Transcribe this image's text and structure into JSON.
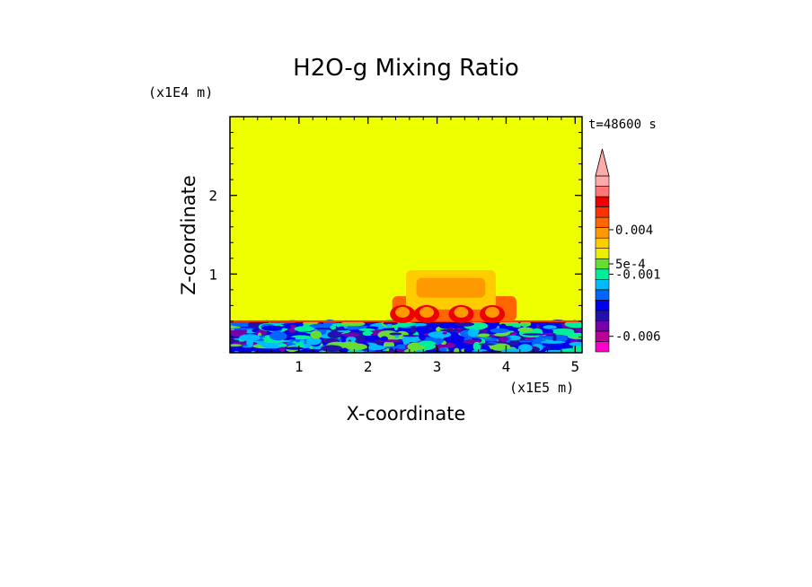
{
  "chart_data": {
    "type": "heatmap",
    "title": "H2O-g Mixing Ratio",
    "xlabel": "X-coordinate",
    "ylabel": "Z-coordinate",
    "x_scale_label": "(x1E5 m)",
    "y_scale_label": "(x1E4 m)",
    "time_label": "t=48600 s",
    "xlim": [
      0,
      5.1
    ],
    "ylim": [
      0,
      3
    ],
    "x_ticks": [
      {
        "value": 1,
        "label": "1"
      },
      {
        "value": 2,
        "label": "2"
      },
      {
        "value": 3,
        "label": "3"
      },
      {
        "value": 4,
        "label": "4"
      },
      {
        "value": 5,
        "label": "5"
      }
    ],
    "y_ticks": [
      {
        "value": 1,
        "label": "1"
      },
      {
        "value": 2,
        "label": "2"
      }
    ],
    "colorbar": {
      "levels": [
        "#ff00cc",
        "#bb0099",
        "#7700aa",
        "#2211aa",
        "#0000ee",
        "#0066ff",
        "#00bbff",
        "#00ee99",
        "#66dd33",
        "#eeee00",
        "#ffcc00",
        "#ff9900",
        "#ff6600",
        "#ff3300",
        "#ee0000",
        "#ff7777",
        "#ffaaaa"
      ],
      "labels": [
        {
          "level": 1.5,
          "text": "-0.006"
        },
        {
          "level": 7.5,
          "text": "-0.001"
        },
        {
          "level": 8.5,
          "text": "5e-4"
        },
        {
          "level": 11.8,
          "text": "0.004"
        }
      ]
    },
    "background_value_color": "#eeff00",
    "boundary_layer_top": 0.4,
    "boundary_layer_colors": [
      "#0000ee",
      "#2211aa",
      "#0066ff",
      "#00bbff",
      "#00ee99",
      "#66dd33",
      "#7700aa"
    ],
    "plume_regions": [
      {
        "x0": 2.35,
        "x1": 4.15,
        "y0": 0.4,
        "y1": 0.72,
        "color": "#ff6600"
      },
      {
        "x0": 2.55,
        "x1": 3.85,
        "y0": 0.55,
        "y1": 1.05,
        "color": "#ffcc00"
      },
      {
        "x0": 2.7,
        "x1": 3.7,
        "y0": 0.7,
        "y1": 0.95,
        "color": "#ff9900"
      }
    ]
  }
}
